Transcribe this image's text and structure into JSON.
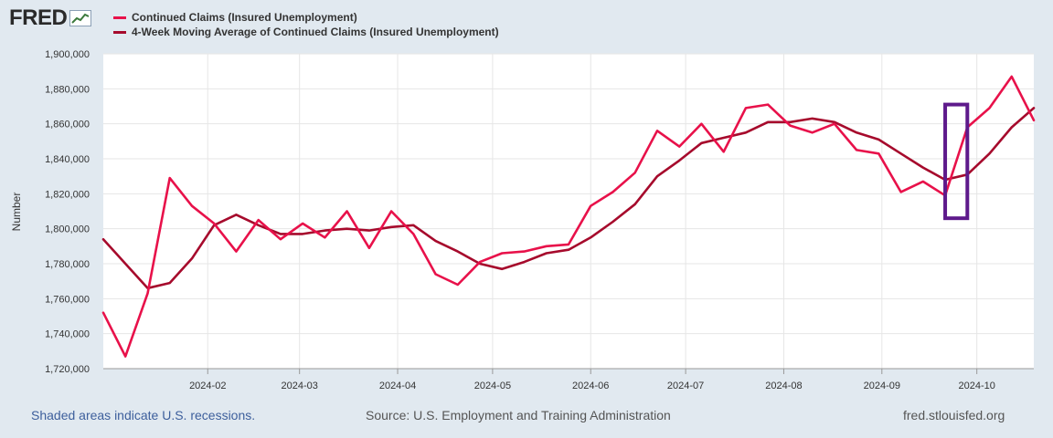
{
  "logo": {
    "text": "FRED",
    "icon": "chart-trend-icon"
  },
  "legend": [
    {
      "label": "Continued Claims (Insured Unemployment)",
      "color": "#e8114a"
    },
    {
      "label": "4-Week Moving Average of Continued Claims (Insured Unemployment)",
      "color": "#a60a2c"
    }
  ],
  "footer": {
    "recessions": "Shaded areas indicate U.S. recessions.",
    "source": "Source: U.S. Employment and Training Administration",
    "site": "fred.stlouisfed.org"
  },
  "chart_data": {
    "type": "line",
    "title": "",
    "xlabel": "",
    "ylabel": "Number",
    "ylim": [
      1720000,
      1900000
    ],
    "yticks": [
      1720000,
      1740000,
      1760000,
      1780000,
      1800000,
      1820000,
      1840000,
      1860000,
      1880000,
      1900000
    ],
    "ytick_labels": [
      "1,720,000",
      "1,740,000",
      "1,760,000",
      "1,780,000",
      "1,800,000",
      "1,820,000",
      "1,840,000",
      "1,860,000",
      "1,880,000",
      "1,900,000"
    ],
    "xtick_labels": [
      "2024-02",
      "2024-03",
      "2024-04",
      "2024-05",
      "2024-06",
      "2024-07",
      "2024-08",
      "2024-09",
      "2024-10"
    ],
    "x_start": "2023-12-30",
    "x_end": "2024-10-19",
    "xtick_dates": [
      "2024-02-01",
      "2024-03-01",
      "2024-04-01",
      "2024-05-01",
      "2024-06-01",
      "2024-07-01",
      "2024-08-01",
      "2024-09-01",
      "2024-10-01"
    ],
    "grid": true,
    "x": [
      "2023-12-30",
      "2024-01-06",
      "2024-01-13",
      "2024-01-20",
      "2024-01-27",
      "2024-02-03",
      "2024-02-10",
      "2024-02-17",
      "2024-02-24",
      "2024-03-02",
      "2024-03-09",
      "2024-03-16",
      "2024-03-23",
      "2024-03-30",
      "2024-04-06",
      "2024-04-13",
      "2024-04-20",
      "2024-04-27",
      "2024-05-04",
      "2024-05-11",
      "2024-05-18",
      "2024-05-25",
      "2024-06-01",
      "2024-06-08",
      "2024-06-15",
      "2024-06-22",
      "2024-06-29",
      "2024-07-06",
      "2024-07-13",
      "2024-07-20",
      "2024-07-27",
      "2024-08-03",
      "2024-08-10",
      "2024-08-17",
      "2024-08-24",
      "2024-08-31",
      "2024-09-07",
      "2024-09-14",
      "2024-09-21",
      "2024-09-28",
      "2024-10-05",
      "2024-10-12",
      "2024-10-19"
    ],
    "series": [
      {
        "name": "Continued Claims (Insured Unemployment)",
        "color": "#e8114a",
        "values": [
          1752000,
          1727000,
          1763000,
          1829000,
          1813000,
          1803000,
          1787000,
          1805000,
          1794000,
          1803000,
          1795000,
          1810000,
          1789000,
          1810000,
          1797000,
          1774000,
          1768000,
          1781000,
          1786000,
          1787000,
          1790000,
          1791000,
          1813000,
          1821000,
          1832000,
          1856000,
          1847000,
          1860000,
          1844000,
          1869000,
          1871000,
          1859000,
          1855000,
          1860000,
          1845000,
          1843000,
          1821000,
          1827000,
          1819000,
          1858000,
          1869000,
          1887000,
          1862000
        ]
      },
      {
        "name": "4-Week Moving Average of Continued Claims (Insured Unemployment)",
        "color": "#a60a2c",
        "values": [
          1794000,
          1780000,
          1766000,
          1769000,
          1783000,
          1802000,
          1808000,
          1802000,
          1797000,
          1797000,
          1799000,
          1800000,
          1799000,
          1801000,
          1802000,
          1793000,
          1787000,
          1780000,
          1777000,
          1781000,
          1786000,
          1788000,
          1795000,
          1804000,
          1814000,
          1830000,
          1839000,
          1849000,
          1852000,
          1855000,
          1861000,
          1861000,
          1863000,
          1861000,
          1855000,
          1851000,
          1843000,
          1835000,
          1828000,
          1831000,
          1843000,
          1858000,
          1869000
        ]
      }
    ],
    "annotation": {
      "type": "highlight-box",
      "color": "#5e1a8b",
      "x_from": "2024-09-21",
      "x_to": "2024-09-28",
      "y_from": 1806000,
      "y_to": 1871000
    }
  }
}
